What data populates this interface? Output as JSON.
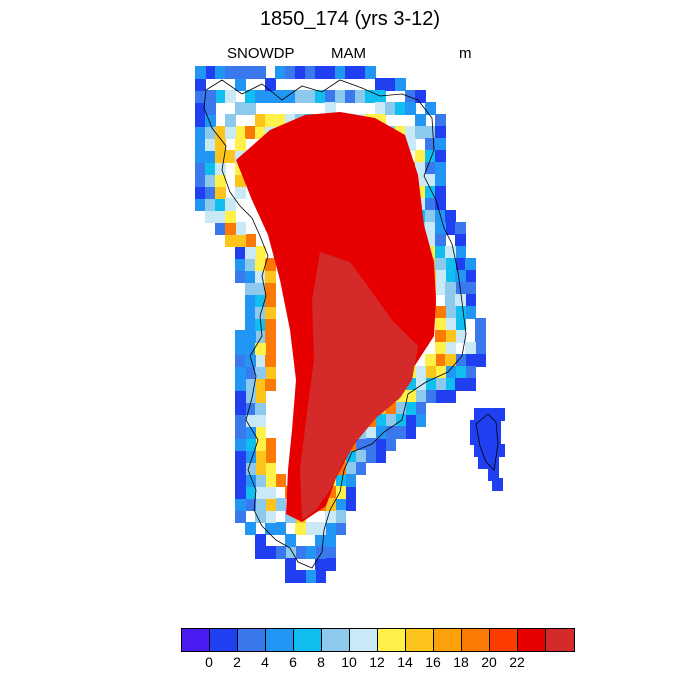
{
  "title": "1850_174 (yrs 3-12)",
  "variable": "SNOWDP",
  "season": "MAM",
  "units": "m",
  "colorbar": {
    "colors": [
      "#4a1cf2",
      "#1f3ff0",
      "#3a78ee",
      "#2196f5",
      "#11bef0",
      "#8cc9ed",
      "#c8e9f5",
      "#fff04a",
      "#fdc41c",
      "#fca10a",
      "#fb7a06",
      "#fd3c00",
      "#e60000",
      "#d42a2a"
    ],
    "tick_labels": [
      "0",
      "2",
      "4",
      "6",
      "8",
      "10",
      "12",
      "14",
      "16",
      "18",
      "20",
      "22"
    ]
  },
  "map_fields": {
    "ocean": "#ffffff",
    "coastline": "#000000",
    "core_color": "#d42a2a",
    "interior_color": "#e60000",
    "margin_colors": [
      "#fb7a06",
      "#fdc41c",
      "#fff04a",
      "#c8e9f5",
      "#8cc9ed",
      "#11bef0",
      "#2196f5",
      "#3a78ee",
      "#1f3ff0"
    ]
  }
}
